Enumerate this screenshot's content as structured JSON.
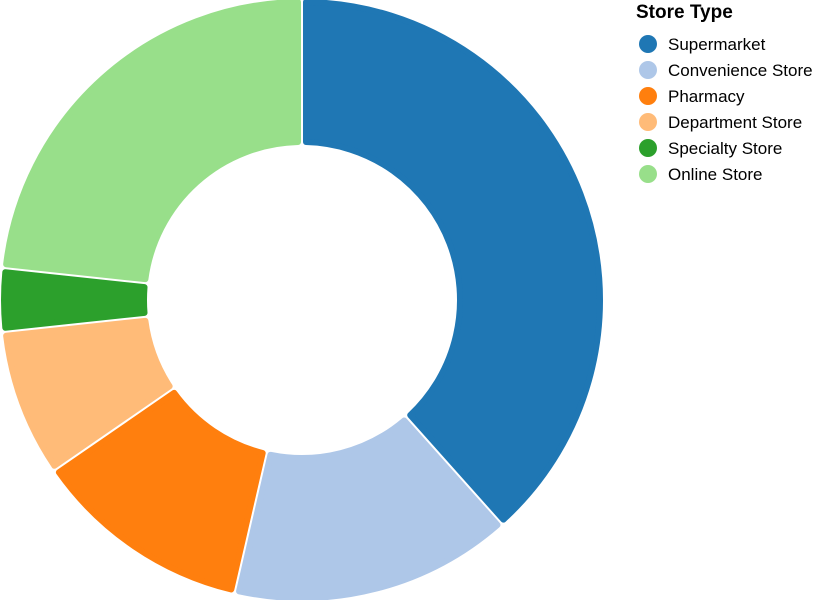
{
  "chart_data": {
    "type": "pie",
    "donut": true,
    "legend": {
      "title": "Store Type",
      "placement": "top-right"
    },
    "categories": [
      "Supermarket",
      "Convenience Store",
      "Pharmacy",
      "Department Store",
      "Specialty Store",
      "Online Store"
    ],
    "values": [
      38.4,
      15.2,
      11.8,
      7.9,
      3.4,
      23.3
    ],
    "colors": [
      "#1f77b4",
      "#aec7e8",
      "#ff7f0e",
      "#ffbb78",
      "#2ca02c",
      "#98df8a"
    ]
  }
}
